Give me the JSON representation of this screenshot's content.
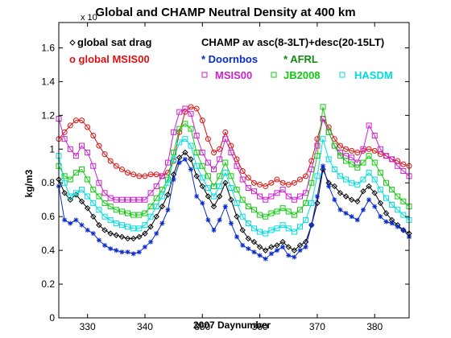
{
  "chart_data": {
    "type": "line",
    "title": "Global and CHAMP Neutral Density at 400 km",
    "xlabel": "2007 Daynumber",
    "ylabel": "kg/m3",
    "exponent_label": "x 10",
    "xlim": [
      325,
      386
    ],
    "ylim": [
      0,
      1.75
    ],
    "xticks": [
      "330",
      "340",
      "350",
      "360",
      "370",
      "380"
    ],
    "yticks": [
      "0",
      "0.2",
      "0.4",
      "0.6",
      "0.8",
      "1",
      "1.2",
      "1.4",
      "1.6"
    ],
    "x_start": 325,
    "x_step": 1,
    "grid": false,
    "legend": {
      "left": [
        "global sat drag",
        "o global MSIS00"
      ],
      "right_header": "CHAMP av asc(8-3LT)+desc(20-15LT)",
      "right": [
        "* Doornbos",
        "* AFRL",
        "MSIS00",
        "JB2008",
        "HASDM"
      ]
    },
    "series": [
      {
        "name": "global sat drag",
        "color": "#000000",
        "marker": "diamond",
        "values": [
          0.82,
          0.74,
          0.7,
          0.73,
          0.69,
          0.65,
          0.6,
          0.55,
          0.52,
          0.5,
          0.49,
          0.48,
          0.47,
          0.47,
          0.48,
          0.5,
          0.54,
          0.6,
          0.66,
          0.73,
          0.85,
          0.95,
          0.98,
          0.94,
          0.84,
          0.78,
          0.72,
          0.66,
          0.72,
          0.8,
          0.7,
          0.6,
          0.52,
          0.47,
          0.45,
          0.42,
          0.4,
          0.42,
          0.43,
          0.45,
          0.42,
          0.4,
          0.43,
          0.45,
          0.55,
          0.68,
          0.88,
          0.8,
          0.78,
          0.74,
          0.72,
          0.7,
          0.69,
          0.75,
          0.78,
          0.74,
          0.68,
          0.62,
          0.58,
          0.55,
          0.52,
          0.5
        ]
      },
      {
        "name": "global MSIS00",
        "color": "#dd1111",
        "marker": "circle",
        "values": [
          1.06,
          1.1,
          1.14,
          1.17,
          1.17,
          1.13,
          1.08,
          1.02,
          0.97,
          0.93,
          0.9,
          0.88,
          0.86,
          0.85,
          0.84,
          0.84,
          0.85,
          0.85,
          0.84,
          0.86,
          0.93,
          1.1,
          1.22,
          1.25,
          1.24,
          1.17,
          1.06,
          0.98,
          1.0,
          1.1,
          1.02,
          0.94,
          0.87,
          0.83,
          0.8,
          0.79,
          0.78,
          0.8,
          0.82,
          0.8,
          0.79,
          0.8,
          0.82,
          0.84,
          0.93,
          1.06,
          1.18,
          1.13,
          1.06,
          1.02,
          1.0,
          0.99,
          0.98,
          0.99,
          1.0,
          0.99,
          0.97,
          0.96,
          0.94,
          0.93,
          0.91,
          0.9
        ]
      },
      {
        "name": "MSIS00",
        "color": "#cc22cc",
        "marker": "square",
        "values": [
          1.18,
          1.06,
          1.0,
          0.96,
          1.02,
          0.98,
          0.9,
          0.8,
          0.74,
          0.71,
          0.7,
          0.7,
          0.7,
          0.7,
          0.7,
          0.7,
          0.74,
          0.78,
          0.84,
          0.92,
          1.1,
          1.22,
          1.24,
          1.21,
          1.08,
          0.98,
          0.92,
          0.88,
          0.94,
          1.06,
          0.98,
          0.9,
          0.82,
          0.77,
          0.75,
          0.72,
          0.7,
          0.72,
          0.74,
          0.76,
          0.72,
          0.7,
          0.72,
          0.74,
          0.88,
          1.02,
          1.18,
          1.1,
          1.02,
          0.98,
          0.96,
          0.95,
          0.92,
          1.0,
          1.14,
          1.08,
          1.0,
          0.96,
          0.94,
          0.9,
          0.87,
          0.84
        ]
      },
      {
        "name": "JB2008",
        "color": "#11cc11",
        "marker": "square",
        "values": [
          0.9,
          0.84,
          0.82,
          0.86,
          0.88,
          0.82,
          0.76,
          0.72,
          0.68,
          0.66,
          0.64,
          0.63,
          0.62,
          0.61,
          0.61,
          0.62,
          0.66,
          0.71,
          0.76,
          0.82,
          0.98,
          1.12,
          1.15,
          1.12,
          0.98,
          0.9,
          0.84,
          0.78,
          0.84,
          0.92,
          0.84,
          0.76,
          0.7,
          0.66,
          0.64,
          0.61,
          0.6,
          0.62,
          0.63,
          0.65,
          0.63,
          0.61,
          0.64,
          0.68,
          0.8,
          0.96,
          1.25,
          1.1,
          1.02,
          0.96,
          0.93,
          0.91,
          0.89,
          0.92,
          0.96,
          0.92,
          0.86,
          0.8,
          0.76,
          0.72,
          0.69,
          0.66
        ]
      },
      {
        "name": "HASDM",
        "color": "#00dddd",
        "marker": "square",
        "values": [
          0.96,
          0.8,
          0.72,
          0.74,
          0.76,
          0.72,
          0.68,
          0.64,
          0.6,
          0.58,
          0.56,
          0.55,
          0.54,
          0.53,
          0.53,
          0.55,
          0.6,
          0.66,
          0.72,
          0.8,
          0.94,
          1.04,
          1.06,
          1.02,
          0.9,
          0.83,
          0.77,
          0.72,
          0.78,
          0.86,
          0.77,
          0.68,
          0.6,
          0.56,
          0.53,
          0.51,
          0.5,
          0.52,
          0.53,
          0.55,
          0.53,
          0.51,
          0.54,
          0.58,
          0.68,
          0.84,
          1.06,
          0.94,
          0.88,
          0.84,
          0.82,
          0.8,
          0.79,
          0.82,
          0.86,
          0.82,
          0.76,
          0.71,
          0.67,
          0.64,
          0.61,
          0.58
        ]
      },
      {
        "name": "Doornbos",
        "color": "#0a2acc",
        "marker": "star",
        "values": [
          0.78,
          0.58,
          0.56,
          0.58,
          0.55,
          0.52,
          0.5,
          0.46,
          0.43,
          0.41,
          0.4,
          0.39,
          0.39,
          0.38,
          0.39,
          0.42,
          0.45,
          0.5,
          0.56,
          0.64,
          0.82,
          0.92,
          0.94,
          0.88,
          0.72,
          0.68,
          0.58,
          0.52,
          0.58,
          0.66,
          0.56,
          0.48,
          0.43,
          0.41,
          0.39,
          0.37,
          0.35,
          0.38,
          0.4,
          0.42,
          0.37,
          0.36,
          0.4,
          0.42,
          0.55,
          0.72,
          0.9,
          0.78,
          0.7,
          0.64,
          0.62,
          0.6,
          0.58,
          0.64,
          0.7,
          0.66,
          0.6,
          0.57,
          0.56,
          0.54,
          0.52,
          0.48
        ]
      }
    ]
  }
}
